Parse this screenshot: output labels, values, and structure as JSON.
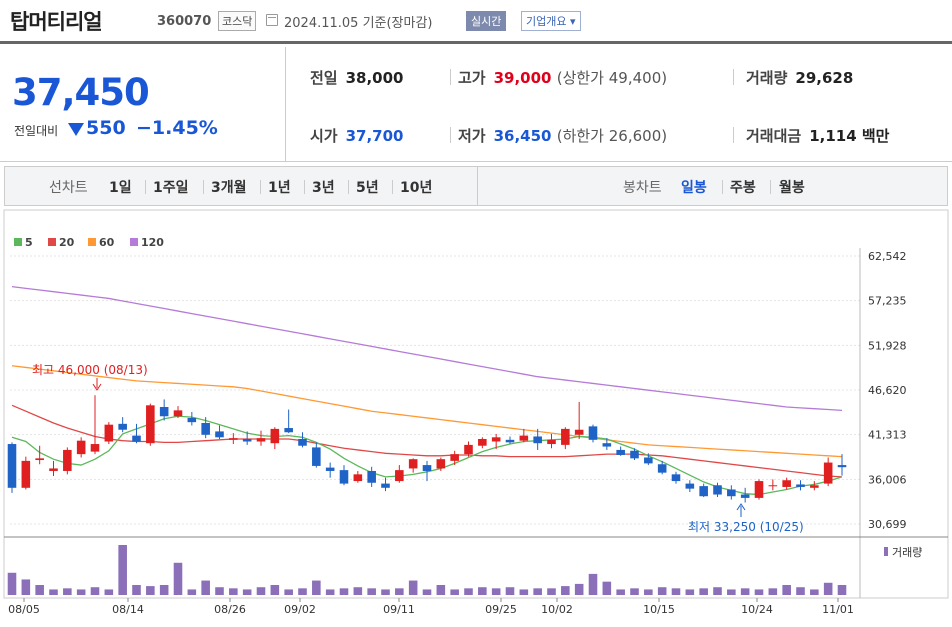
{
  "header": {
    "name": "탑머티리얼",
    "code": "360070",
    "market": "코스닥",
    "date": "2024.11.05 기준(장마감)",
    "realtime": "실시간",
    "company": "기업개요 ▾"
  },
  "summary": {
    "price": "37,450",
    "change_label": "전일대비",
    "change": "550",
    "change_pct": "−1.45%",
    "prev_label": "전일",
    "prev": "38,000",
    "open_label": "시가",
    "open": "37,700",
    "high_label": "고가",
    "high": "39,000",
    "upper_label": "(상한가 49,400)",
    "low_label": "저가",
    "low": "36,450",
    "lower_label": "(하한가 26,600)",
    "vol_label": "거래량",
    "vol": "29,628",
    "amt_label": "거래대금",
    "amt": "1,114 백만"
  },
  "period": {
    "line_label": "선차트",
    "line_items": [
      "1일",
      "1주일",
      "3개월",
      "1년",
      "3년",
      "5년",
      "10년"
    ],
    "candle_label": "봉차트",
    "candle_items": [
      "일봉",
      "주봉",
      "월봉"
    ],
    "candle_selected": 0
  },
  "colors": {
    "up": "#e02020",
    "down": "#1f63c6",
    "ma5": "#5cb85c",
    "ma20": "#e04848",
    "ma60": "#ff9933",
    "ma120": "#b47bd8",
    "vol": "#8b6fb8"
  },
  "chart_data": {
    "type": "candlestick",
    "legend": [
      "5",
      "20",
      "60",
      "120"
    ],
    "yticks": [
      "62,542",
      "57,235",
      "51,928",
      "46,620",
      "41,313",
      "36,006",
      "30,699"
    ],
    "ylim": [
      30699,
      62542
    ],
    "xlabels": [
      "08/05",
      "08/14",
      "08/26",
      "09/02",
      "09/11",
      "09/25",
      "10/02",
      "10/15",
      "10/24",
      "11/01"
    ],
    "high_note": "최고 46,000 (08/13)",
    "low_note": "최저 33,250 (10/25)",
    "volume_label": "거래량",
    "candles": [
      {
        "o": 40200,
        "h": 40400,
        "l": 34400,
        "c": 35000
      },
      {
        "o": 35000,
        "h": 38700,
        "l": 34800,
        "c": 38200
      },
      {
        "o": 38300,
        "h": 40000,
        "l": 37800,
        "c": 38500
      },
      {
        "o": 37000,
        "h": 38200,
        "l": 36400,
        "c": 37300
      },
      {
        "o": 37000,
        "h": 39800,
        "l": 36600,
        "c": 39500
      },
      {
        "o": 39000,
        "h": 41000,
        "l": 38600,
        "c": 40600
      },
      {
        "o": 39300,
        "h": 46000,
        "l": 39000,
        "c": 40200
      },
      {
        "o": 40500,
        "h": 42800,
        "l": 40200,
        "c": 42500
      },
      {
        "o": 42600,
        "h": 43400,
        "l": 41600,
        "c": 41900
      },
      {
        "o": 41200,
        "h": 42600,
        "l": 40300,
        "c": 40500
      },
      {
        "o": 40300,
        "h": 45000,
        "l": 40000,
        "c": 44800
      },
      {
        "o": 44600,
        "h": 45500,
        "l": 43000,
        "c": 43500
      },
      {
        "o": 43500,
        "h": 44700,
        "l": 43300,
        "c": 44200
      },
      {
        "o": 43300,
        "h": 44000,
        "l": 42400,
        "c": 42800
      },
      {
        "o": 42700,
        "h": 43400,
        "l": 40900,
        "c": 41300
      },
      {
        "o": 41700,
        "h": 42400,
        "l": 40800,
        "c": 41000
      },
      {
        "o": 40700,
        "h": 41500,
        "l": 40200,
        "c": 40900
      },
      {
        "o": 40800,
        "h": 41700,
        "l": 40100,
        "c": 40500
      },
      {
        "o": 40500,
        "h": 41800,
        "l": 40000,
        "c": 40900
      },
      {
        "o": 40300,
        "h": 42200,
        "l": 39600,
        "c": 42000
      },
      {
        "o": 42100,
        "h": 44300,
        "l": 41500,
        "c": 41600
      },
      {
        "o": 40800,
        "h": 41600,
        "l": 39800,
        "c": 40000
      },
      {
        "o": 39800,
        "h": 40400,
        "l": 37400,
        "c": 37600
      },
      {
        "o": 37400,
        "h": 38000,
        "l": 36200,
        "c": 37000
      },
      {
        "o": 37100,
        "h": 37700,
        "l": 35300,
        "c": 35500
      },
      {
        "o": 35800,
        "h": 37000,
        "l": 35600,
        "c": 36600
      },
      {
        "o": 37000,
        "h": 37500,
        "l": 35100,
        "c": 35600
      },
      {
        "o": 35500,
        "h": 36200,
        "l": 34600,
        "c": 35000
      },
      {
        "o": 35800,
        "h": 37700,
        "l": 35600,
        "c": 37100
      },
      {
        "o": 37300,
        "h": 38500,
        "l": 36800,
        "c": 38400
      },
      {
        "o": 37700,
        "h": 38200,
        "l": 35800,
        "c": 37000
      },
      {
        "o": 37300,
        "h": 38600,
        "l": 37000,
        "c": 38400
      },
      {
        "o": 38200,
        "h": 39400,
        "l": 37700,
        "c": 39000
      },
      {
        "o": 39000,
        "h": 40500,
        "l": 38700,
        "c": 40100
      },
      {
        "o": 40000,
        "h": 41000,
        "l": 39700,
        "c": 40800
      },
      {
        "o": 40500,
        "h": 41400,
        "l": 39600,
        "c": 41000
      },
      {
        "o": 40700,
        "h": 41100,
        "l": 40200,
        "c": 40400
      },
      {
        "o": 40600,
        "h": 42000,
        "l": 40400,
        "c": 41200
      },
      {
        "o": 41100,
        "h": 42000,
        "l": 39500,
        "c": 40300
      },
      {
        "o": 40200,
        "h": 41400,
        "l": 39700,
        "c": 40700
      },
      {
        "o": 40100,
        "h": 42200,
        "l": 39600,
        "c": 42000
      },
      {
        "o": 41300,
        "h": 45200,
        "l": 40800,
        "c": 41900
      },
      {
        "o": 42300,
        "h": 42500,
        "l": 40400,
        "c": 40700
      },
      {
        "o": 40300,
        "h": 40900,
        "l": 39500,
        "c": 39900
      },
      {
        "o": 39500,
        "h": 39900,
        "l": 38800,
        "c": 38900
      },
      {
        "o": 39400,
        "h": 39700,
        "l": 38300,
        "c": 38500
      },
      {
        "o": 38600,
        "h": 39100,
        "l": 37700,
        "c": 37900
      },
      {
        "o": 37800,
        "h": 38200,
        "l": 36600,
        "c": 36800
      },
      {
        "o": 36600,
        "h": 36900,
        "l": 35500,
        "c": 35800
      },
      {
        "o": 35500,
        "h": 35900,
        "l": 34500,
        "c": 34900
      },
      {
        "o": 35200,
        "h": 35500,
        "l": 33900,
        "c": 34000
      },
      {
        "o": 35300,
        "h": 35600,
        "l": 33900,
        "c": 34200
      },
      {
        "o": 34800,
        "h": 35300,
        "l": 33600,
        "c": 34000
      },
      {
        "o": 34200,
        "h": 35000,
        "l": 33250,
        "c": 33800
      },
      {
        "o": 33800,
        "h": 36000,
        "l": 33600,
        "c": 35800
      },
      {
        "o": 35200,
        "h": 36000,
        "l": 34700,
        "c": 35300
      },
      {
        "o": 35100,
        "h": 36200,
        "l": 34800,
        "c": 35900
      },
      {
        "o": 35400,
        "h": 35900,
        "l": 34700,
        "c": 35100
      },
      {
        "o": 35000,
        "h": 35800,
        "l": 34700,
        "c": 35300
      },
      {
        "o": 35500,
        "h": 38600,
        "l": 35200,
        "c": 38000
      },
      {
        "o": 37700,
        "h": 39000,
        "l": 36450,
        "c": 37450
      }
    ],
    "ma5": [
      41000,
      40500,
      39200,
      38400,
      37900,
      37700,
      38400,
      39400,
      41400,
      42000,
      42600,
      43200,
      43500,
      43400,
      43000,
      42500,
      42000,
      41500,
      41200,
      41100,
      41200,
      41000,
      40400,
      39600,
      38500,
      37600,
      36800,
      36300,
      36400,
      36600,
      36900,
      37300,
      37900,
      38600,
      39300,
      39800,
      40200,
      40500,
      40600,
      40700,
      40800,
      41100,
      41000,
      40800,
      40200,
      39600,
      38800,
      38100,
      37300,
      36500,
      35700,
      35100,
      34700,
      34300,
      34200,
      34500,
      34800,
      35200,
      35400,
      35800,
      36300
    ],
    "ma20": [
      44800,
      44100,
      43400,
      42700,
      42100,
      41600,
      41100,
      40800,
      40600,
      40500,
      40500,
      40400,
      40400,
      40500,
      40600,
      40700,
      40800,
      40800,
      40800,
      40800,
      40800,
      40600,
      40300,
      40000,
      39700,
      39500,
      39300,
      39100,
      39000,
      38900,
      38800,
      38800,
      38900,
      38900,
      38800,
      38800,
      38700,
      38700,
      38700,
      38700,
      38700,
      38800,
      38900,
      39000,
      39000,
      39000,
      38900,
      38800,
      38600,
      38400,
      38200,
      38000,
      37800,
      37600,
      37400,
      37200,
      37000,
      36800,
      36600,
      36400,
      36300
    ],
    "ma60": [
      49500,
      49300,
      49100,
      48900,
      48700,
      48500,
      48300,
      48100,
      47900,
      47700,
      47600,
      47500,
      47400,
      47300,
      47200,
      47100,
      47000,
      46800,
      46500,
      46200,
      45900,
      45600,
      45300,
      45000,
      44700,
      44400,
      44100,
      43900,
      43700,
      43500,
      43300,
      43100,
      42900,
      42700,
      42500,
      42300,
      42100,
      41900,
      41700,
      41500,
      41300,
      41100,
      40900,
      40700,
      40500,
      40300,
      40100,
      40000,
      39900,
      39800,
      39700,
      39600,
      39500,
      39400,
      39300,
      39200,
      39100,
      39000,
      38900,
      38800,
      38700
    ],
    "ma120": [
      58900,
      58700,
      58500,
      58300,
      58100,
      57900,
      57700,
      57500,
      57200,
      56900,
      56600,
      56300,
      56000,
      55700,
      55400,
      55100,
      54800,
      54500,
      54200,
      53900,
      53600,
      53300,
      53000,
      52700,
      52400,
      52100,
      51800,
      51500,
      51200,
      50900,
      50600,
      50300,
      50000,
      49700,
      49400,
      49100,
      48800,
      48500,
      48200,
      48000,
      47800,
      47600,
      47400,
      47200,
      47000,
      46800,
      46600,
      46400,
      46200,
      46000,
      45800,
      45600,
      45400,
      45200,
      45000,
      44800,
      44600,
      44500,
      44400,
      44300,
      44200
    ],
    "volume": [
      40,
      28,
      18,
      10,
      12,
      10,
      14,
      10,
      90,
      18,
      16,
      18,
      58,
      10,
      26,
      14,
      12,
      10,
      14,
      18,
      10,
      12,
      26,
      10,
      12,
      14,
      12,
      10,
      12,
      26,
      10,
      18,
      10,
      12,
      14,
      12,
      14,
      10,
      12,
      12,
      16,
      20,
      38,
      24,
      10,
      12,
      10,
      14,
      12,
      10,
      12,
      14,
      10,
      12,
      10,
      12,
      18,
      14,
      10,
      22,
      18
    ]
  }
}
